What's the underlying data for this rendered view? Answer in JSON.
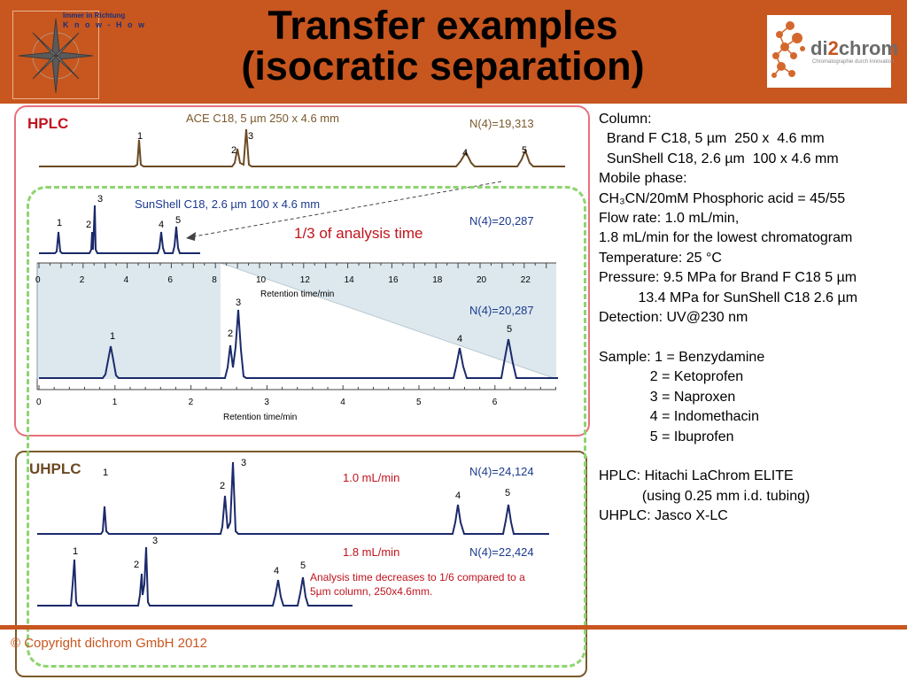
{
  "title": {
    "line1": "Transfer examples",
    "line2": "(isocratic separation)"
  },
  "logo_left": {
    "tag1": "Immer in Richtung",
    "tag2": "K n o w - H o w",
    "icon": "compass-rose-icon"
  },
  "logo_right": {
    "brand_a": "di",
    "brand_b": "2",
    "brand_c": "chrom",
    "sub": "Chromatographie durch Innovation",
    "icon": "molecule-dots-icon"
  },
  "colors": {
    "accent": "#c8561f",
    "hplc_frame": "#e8707e",
    "dashed": "#8fd46f",
    "trace_brown": "#6b4a24",
    "trace_blue": "#1b2a6b",
    "red_text": "#c0141e",
    "blue_text": "#1b3a8f"
  },
  "hplc": {
    "label": "HPLC",
    "ace": {
      "title": "ACE C18, 5 µm 250 x 4.6 mm",
      "plates": "N(4)=19,313",
      "peaks": [
        "1",
        "2",
        "3",
        "4",
        "5"
      ]
    },
    "sunshell": {
      "title": "SunShell C18, 2.6 µm 100 x 4.6 mm",
      "plates": "N(4)=20,287",
      "peaks": [
        "1",
        "2",
        "3",
        "4",
        "5"
      ]
    },
    "annotation": "1/3 of analysis time",
    "axis1": {
      "ticks": [
        "0",
        "2",
        "4",
        "6",
        "8",
        "10",
        "12",
        "14",
        "16",
        "18",
        "20",
        "22"
      ],
      "label": "Retention time/min"
    },
    "expanded": {
      "plates": "N(4)=20,287",
      "peaks": [
        "1",
        "2",
        "3",
        "4",
        "5"
      ]
    },
    "axis2": {
      "ticks": [
        "0",
        "1",
        "2",
        "3",
        "4",
        "5",
        "6"
      ],
      "label": "Retention time/min"
    }
  },
  "uhplc": {
    "label": "UHPLC",
    "run1": {
      "flow": "1.0 mL/min",
      "plates": "N(4)=24,124",
      "peaks": [
        "1",
        "2",
        "3",
        "4",
        "5"
      ]
    },
    "run2": {
      "flow": "1.8 mL/min",
      "plates": "N(4)=22,424",
      "peaks": [
        "1",
        "2",
        "3",
        "4",
        "5"
      ]
    },
    "note1": "Analysis time decreases to 1/6 compared to a",
    "note2": "5µm column, 250x4.6mm."
  },
  "conditions": {
    "lines": [
      "Column:",
      "  Brand F C18, 5 µm  250 x  4.6 mm",
      "  SunShell C18, 2.6 µm  100 x 4.6 mm",
      "Mobile phase:",
      "CH₃CN/20mM Phosphoric acid = 45/55",
      "Flow rate: 1.0 mL/min,",
      "1.8 mL/min for the lowest chromatogram",
      "Temperature: 25 °C",
      "Pressure: 9.5 MPa for Brand F C18 5 µm",
      "          13.4 MPa for SunShell C18 2.6 µm",
      "Detection: UV@230 nm",
      "",
      "Sample: 1 = Benzydamine",
      "             2 = Ketoprofen",
      "             3 = Naproxen",
      "             4 = Indomethacin",
      "             5 = Ibuprofen",
      "",
      "HPLC: Hitachi LaChrom ELITE",
      "           (using 0.25 mm i.d. tubing)",
      "UHPLC: Jasco X-LC"
    ]
  },
  "footer": {
    "copyright": "© Copyright dichrom GmbH 2012"
  }
}
